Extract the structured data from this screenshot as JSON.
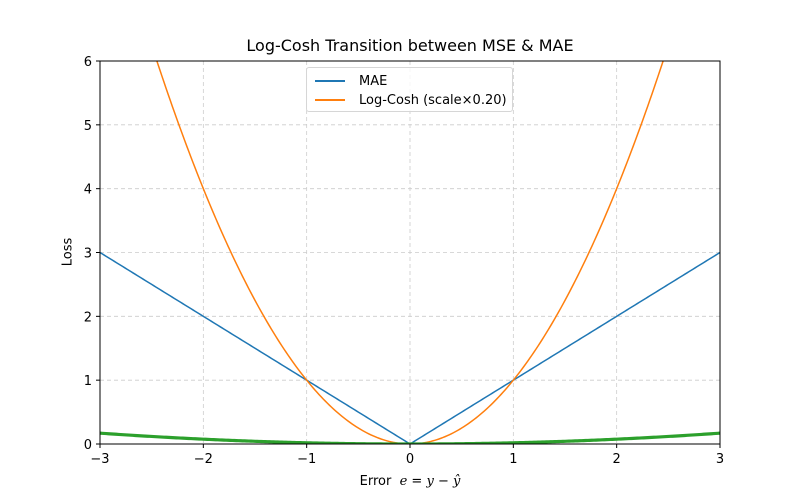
{
  "chart_data": {
    "type": "line",
    "title": "Log-Cosh Transition between MSE & MAE",
    "xlabel": "Error  e = y − ŷ",
    "ylabel": "Loss",
    "xlim": [
      -3,
      3
    ],
    "ylim": [
      0,
      6
    ],
    "xticks": [
      "−3",
      "−2",
      "−1",
      "0",
      "1",
      "2",
      "3"
    ],
    "yticks": [
      "0",
      "1",
      "2",
      "3",
      "4",
      "5",
      "6"
    ],
    "grid": true,
    "grid_style": "dashed",
    "legend_position": "upper center",
    "x": [
      -3,
      -2.5,
      -2,
      -1.5,
      -1,
      -0.5,
      0,
      0.5,
      1,
      1.5,
      2,
      2.5,
      3
    ],
    "series": [
      {
        "name": "MAE",
        "color": "#1f77b4",
        "values": [
          3,
          2.5,
          2,
          1.5,
          1,
          0.5,
          0,
          0.5,
          1,
          1.5,
          2,
          2.5,
          3
        ]
      },
      {
        "name": "Log-Cosh (scale×0.20)",
        "color": "#ff7f0e",
        "values": [
          9,
          6.25,
          4,
          2.25,
          1,
          0.25,
          0,
          0.25,
          1,
          2.25,
          4,
          6.25,
          9
        ]
      },
      {
        "name": "",
        "color": "#2ca02c",
        "in_legend": false,
        "values": [
          0.17,
          0.12,
          0.075,
          0.042,
          0.019,
          0.005,
          0,
          0.005,
          0.019,
          0.042,
          0.075,
          0.12,
          0.17
        ]
      }
    ]
  },
  "legend": {
    "items": [
      {
        "label": "MAE",
        "color": "#1f77b4"
      },
      {
        "label": "Log-Cosh (scale×0.20)",
        "color": "#ff7f0e"
      }
    ]
  }
}
